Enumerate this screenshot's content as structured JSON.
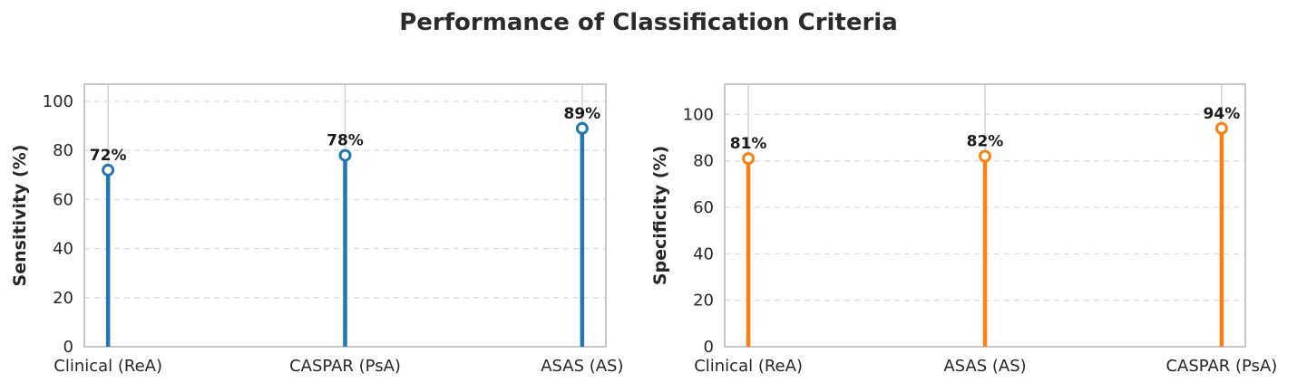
{
  "title": "Performance of Classification Criteria",
  "colors": {
    "sensitivity_accent": "#1f77b4",
    "specificity_accent": "#ff7f0e",
    "grid_horizontal": "#dcdcdc",
    "grid_vertical": "#cccccc",
    "spine": "#c7c7c7",
    "tick_text": "#262626",
    "value_label_text": "#1a1a1a",
    "marker_face": "#ffffff"
  },
  "chart_data": [
    {
      "type": "stem",
      "name": "sensitivity",
      "ylabel": "Sensitivity (%)",
      "categories": [
        "Clinical (ReA)",
        "CASPAR (PsA)",
        "ASAS (AS)"
      ],
      "values": [
        72,
        78,
        89
      ],
      "point_labels": [
        "72%",
        "78%",
        "89%"
      ],
      "yticks": [
        0,
        20,
        40,
        60,
        80,
        100
      ],
      "ytick_labels": [
        "0",
        "20",
        "40",
        "60",
        "80",
        "100"
      ],
      "ylim": [
        0,
        107
      ],
      "xlim": [
        -0.1,
        2.1
      ],
      "color": "#1f77b4",
      "grid": "on",
      "legend": "none"
    },
    {
      "type": "stem",
      "name": "specificity",
      "ylabel": "Specificity (%)",
      "categories": [
        "Clinical (ReA)",
        "ASAS (AS)",
        "CASPAR (PsA)"
      ],
      "values": [
        81,
        82,
        94
      ],
      "point_labels": [
        "81%",
        "82%",
        "94%"
      ],
      "yticks": [
        0,
        20,
        40,
        60,
        80,
        100
      ],
      "ytick_labels": [
        "0",
        "20",
        "40",
        "60",
        "80",
        "100"
      ],
      "ylim": [
        0,
        113
      ],
      "xlim": [
        -0.1,
        2.1
      ],
      "color": "#ff7f0e",
      "grid": "on",
      "legend": "none"
    }
  ]
}
